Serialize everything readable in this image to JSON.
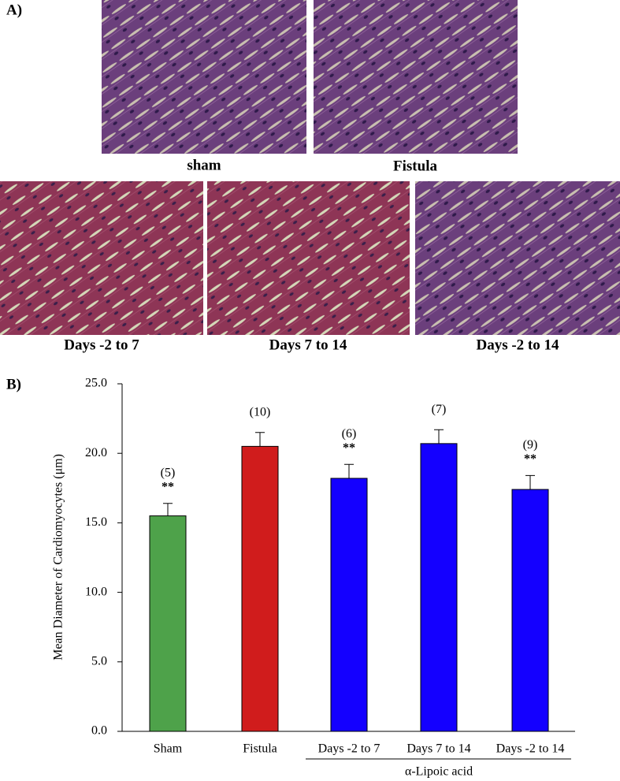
{
  "figure": {
    "panel_a": {
      "label": "A)",
      "images": [
        {
          "caption": "sham"
        },
        {
          "caption": "Fistula"
        },
        {
          "caption": "Days -2 to 7"
        },
        {
          "caption": "Days 7 to 14"
        },
        {
          "caption": "Days -2 to 14"
        }
      ]
    },
    "panel_b_label": "B)"
  },
  "chart_data": {
    "type": "bar",
    "y_label": "Mean Diameter of Cardiomyocytes (μm)",
    "categories": [
      "Sham",
      "Fistula",
      "Days -2 to 7",
      "Days 7 to 14",
      "Days -2 to 14"
    ],
    "values": [
      15.5,
      20.5,
      18.2,
      20.7,
      17.4
    ],
    "errors": [
      0.9,
      1.0,
      1.0,
      1.0,
      1.0
    ],
    "colors": [
      "#4ea24a",
      "#d01c1c",
      "#1400ff",
      "#1400ff",
      "#1400ff"
    ],
    "n_labels": [
      "(5)",
      "(10)",
      "(6)",
      "(7)",
      "(9)"
    ],
    "significance": [
      "**",
      null,
      "**",
      null,
      "**"
    ],
    "group_label": "α-Lipoic acid",
    "ylim": [
      0,
      25
    ],
    "yticks": [
      {
        "value": 0,
        "label": "0.0"
      },
      {
        "value": 5,
        "label": "5.0"
      },
      {
        "value": 10,
        "label": "10.0"
      },
      {
        "value": 15,
        "label": "15.0"
      },
      {
        "value": 20,
        "label": "20.0"
      },
      {
        "value": 25,
        "label": "25.0"
      }
    ]
  }
}
